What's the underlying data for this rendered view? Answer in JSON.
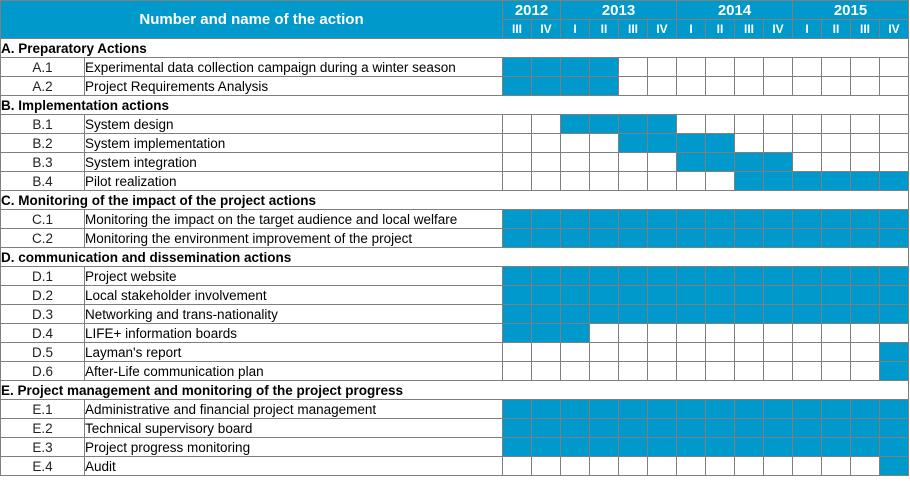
{
  "header": {
    "title": "Number and name of the action",
    "years": [
      {
        "label": "2012",
        "span": 2
      },
      {
        "label": "2013",
        "span": 4
      },
      {
        "label": "2014",
        "span": 4
      },
      {
        "label": "2015",
        "span": 4
      }
    ],
    "quarters": [
      "III",
      "IV",
      "I",
      "II",
      "III",
      "IV",
      "I",
      "II",
      "III",
      "IV",
      "I",
      "II",
      "III",
      "IV"
    ]
  },
  "colors": {
    "active": "#0099cc",
    "header": "#0099cc"
  },
  "sections": [
    {
      "title": "A. Preparatory Actions",
      "rows": [
        {
          "code": "A.1",
          "name": "Experimental data collection campaign during a winter season",
          "active": [
            1,
            1,
            1,
            1,
            0,
            0,
            0,
            0,
            0,
            0,
            0,
            0,
            0,
            0
          ]
        },
        {
          "code": "A.2",
          "name": "Project Requirements Analysis",
          "active": [
            1,
            1,
            1,
            1,
            0,
            0,
            0,
            0,
            0,
            0,
            0,
            0,
            0,
            0
          ]
        }
      ]
    },
    {
      "title": "B. Implementation actions",
      "rows": [
        {
          "code": "B.1",
          "name": "System design",
          "active": [
            0,
            0,
            1,
            1,
            1,
            1,
            0,
            0,
            0,
            0,
            0,
            0,
            0,
            0
          ]
        },
        {
          "code": "B.2",
          "name": "System implementation",
          "active": [
            0,
            0,
            0,
            0,
            1,
            1,
            1,
            1,
            0,
            0,
            0,
            0,
            0,
            0
          ]
        },
        {
          "code": "B.3",
          "name": "System integration",
          "active": [
            0,
            0,
            0,
            0,
            0,
            0,
            1,
            1,
            1,
            1,
            0,
            0,
            0,
            0
          ]
        },
        {
          "code": "B.4",
          "name": "Pilot realization",
          "active": [
            0,
            0,
            0,
            0,
            0,
            0,
            0,
            0,
            1,
            1,
            1,
            1,
            1,
            1
          ]
        }
      ]
    },
    {
      "title": "C. Monitoring of the impact of the project actions",
      "rows": [
        {
          "code": "C.1",
          "name": "Monitoring the impact on the target audience and local welfare",
          "active": [
            1,
            1,
            1,
            1,
            1,
            1,
            1,
            1,
            1,
            1,
            1,
            1,
            1,
            1
          ]
        },
        {
          "code": "C.2",
          "name": "Monitoring the environment improvement of the project",
          "active": [
            1,
            1,
            1,
            1,
            1,
            1,
            1,
            1,
            1,
            1,
            1,
            1,
            1,
            1
          ]
        }
      ]
    },
    {
      "title": "D. communication and dissemination actions",
      "rows": [
        {
          "code": "D.1",
          "name": "Project website",
          "active": [
            1,
            1,
            1,
            1,
            1,
            1,
            1,
            1,
            1,
            1,
            1,
            1,
            1,
            1
          ]
        },
        {
          "code": "D.2",
          "name": "Local stakeholder involvement",
          "active": [
            1,
            1,
            1,
            1,
            1,
            1,
            1,
            1,
            1,
            1,
            1,
            1,
            1,
            1
          ]
        },
        {
          "code": "D.3",
          "name": "Networking and trans-nationality",
          "active": [
            1,
            1,
            1,
            1,
            1,
            1,
            1,
            1,
            1,
            1,
            1,
            1,
            1,
            1
          ]
        },
        {
          "code": "D.4",
          "name": "LIFE+ information boards",
          "active": [
            1,
            1,
            1,
            0,
            0,
            0,
            0,
            0,
            0,
            0,
            0,
            0,
            0,
            0
          ]
        },
        {
          "code": "D.5",
          "name": "Layman's report",
          "active": [
            0,
            0,
            0,
            0,
            0,
            0,
            0,
            0,
            0,
            0,
            0,
            0,
            0,
            1
          ]
        },
        {
          "code": "D.6",
          "name": "After-Life communication plan",
          "active": [
            0,
            0,
            0,
            0,
            0,
            0,
            0,
            0,
            0,
            0,
            0,
            0,
            0,
            1
          ]
        }
      ]
    },
    {
      "title": "E. Project management and monitoring of the project progress",
      "rows": [
        {
          "code": "E.1",
          "name": "Administrative and financial project management",
          "active": [
            1,
            1,
            1,
            1,
            1,
            1,
            1,
            1,
            1,
            1,
            1,
            1,
            1,
            1
          ]
        },
        {
          "code": "E.2",
          "name": "Technical supervisory board",
          "active": [
            1,
            1,
            1,
            1,
            1,
            1,
            1,
            1,
            1,
            1,
            1,
            1,
            1,
            1
          ]
        },
        {
          "code": "E.3",
          "name": "Project progress monitoring",
          "active": [
            1,
            1,
            1,
            1,
            1,
            1,
            1,
            1,
            1,
            1,
            1,
            1,
            1,
            1
          ]
        },
        {
          "code": "E.4",
          "name": "Audit",
          "active": [
            0,
            0,
            0,
            0,
            0,
            0,
            0,
            0,
            0,
            0,
            0,
            0,
            0,
            1
          ]
        }
      ]
    }
  ]
}
